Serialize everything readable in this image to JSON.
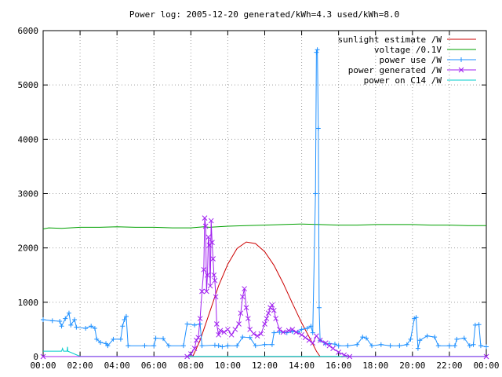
{
  "chart_data": {
    "type": "line",
    "title": "Power log: 2005-12-20 generated/kWh=4.3 used/kWh=8.0",
    "xlabel": "",
    "ylabel": "",
    "xlim": [
      0,
      24
    ],
    "ylim": [
      0,
      6000
    ],
    "x_ticks": [
      "00:00",
      "02:00",
      "04:00",
      "06:00",
      "08:00",
      "10:00",
      "12:00",
      "14:00",
      "16:00",
      "18:00",
      "20:00",
      "22:00",
      "00:00"
    ],
    "y_ticks": [
      "0",
      "1000",
      "2000",
      "3000",
      "4000",
      "5000",
      "6000"
    ],
    "grid": true,
    "legend_position": "top-right",
    "series": [
      {
        "name": "sunlight estimate /W",
        "color": "#cc0000",
        "marker": "none",
        "points": [
          [
            8.1,
            0
          ],
          [
            8.5,
            300
          ],
          [
            9.0,
            800
          ],
          [
            9.5,
            1300
          ],
          [
            10.0,
            1700
          ],
          [
            10.5,
            1990
          ],
          [
            11.0,
            2110
          ],
          [
            11.5,
            2080
          ],
          [
            12.0,
            1930
          ],
          [
            12.5,
            1680
          ],
          [
            13.0,
            1350
          ],
          [
            13.5,
            980
          ],
          [
            14.0,
            620
          ],
          [
            14.5,
            300
          ],
          [
            14.8,
            100
          ],
          [
            15.0,
            0
          ]
        ]
      },
      {
        "name": "voltage /0.1V",
        "color": "#00a000",
        "marker": "none",
        "points": [
          [
            0.0,
            2350
          ],
          [
            0.3,
            2370
          ],
          [
            1.0,
            2360
          ],
          [
            2.0,
            2380
          ],
          [
            3.0,
            2380
          ],
          [
            4.0,
            2390
          ],
          [
            5.0,
            2380
          ],
          [
            6.0,
            2380
          ],
          [
            7.0,
            2370
          ],
          [
            8.0,
            2370
          ],
          [
            8.7,
            2390
          ],
          [
            9.0,
            2380
          ],
          [
            10.0,
            2400
          ],
          [
            11.0,
            2410
          ],
          [
            12.0,
            2420
          ],
          [
            13.0,
            2430
          ],
          [
            14.0,
            2440
          ],
          [
            15.0,
            2430
          ],
          [
            16.0,
            2420
          ],
          [
            17.0,
            2420
          ],
          [
            18.0,
            2430
          ],
          [
            19.0,
            2430
          ],
          [
            20.0,
            2430
          ],
          [
            21.0,
            2420
          ],
          [
            22.0,
            2420
          ],
          [
            23.0,
            2410
          ],
          [
            24.0,
            2410
          ]
        ]
      },
      {
        "name": "power use /W",
        "color": "#1e90ff",
        "marker": "plus",
        "points": [
          [
            0.0,
            680
          ],
          [
            0.5,
            660
          ],
          [
            0.9,
            650
          ],
          [
            1.0,
            560
          ],
          [
            1.2,
            700
          ],
          [
            1.4,
            800
          ],
          [
            1.5,
            580
          ],
          [
            1.7,
            680
          ],
          [
            1.8,
            540
          ],
          [
            2.3,
            520
          ],
          [
            2.6,
            560
          ],
          [
            2.8,
            520
          ],
          [
            2.9,
            320
          ],
          [
            3.1,
            260
          ],
          [
            3.4,
            240
          ],
          [
            3.5,
            200
          ],
          [
            3.8,
            320
          ],
          [
            4.2,
            320
          ],
          [
            4.3,
            560
          ],
          [
            4.4,
            680
          ],
          [
            4.5,
            740
          ],
          [
            4.6,
            200
          ],
          [
            5.5,
            200
          ],
          [
            6.0,
            200
          ],
          [
            6.1,
            340
          ],
          [
            6.5,
            330
          ],
          [
            6.8,
            200
          ],
          [
            7.6,
            200
          ],
          [
            7.8,
            600
          ],
          [
            8.2,
            580
          ],
          [
            8.5,
            600
          ],
          [
            8.6,
            200
          ],
          [
            9.3,
            210
          ],
          [
            9.5,
            200
          ],
          [
            9.7,
            180
          ],
          [
            10.0,
            200
          ],
          [
            10.5,
            200
          ],
          [
            10.8,
            360
          ],
          [
            11.2,
            350
          ],
          [
            11.5,
            200
          ],
          [
            12.0,
            220
          ],
          [
            12.4,
            220
          ],
          [
            12.5,
            440
          ],
          [
            12.8,
            450
          ],
          [
            13.2,
            440
          ],
          [
            13.5,
            460
          ],
          [
            13.8,
            450
          ],
          [
            14.0,
            500
          ],
          [
            14.3,
            520
          ],
          [
            14.5,
            560
          ],
          [
            14.6,
            440
          ],
          [
            14.75,
            3000
          ],
          [
            14.8,
            5600
          ],
          [
            14.85,
            5650
          ],
          [
            14.9,
            4200
          ],
          [
            14.95,
            900
          ],
          [
            15.0,
            300
          ],
          [
            15.3,
            230
          ],
          [
            15.5,
            240
          ],
          [
            15.8,
            230
          ],
          [
            16.0,
            200
          ],
          [
            16.5,
            200
          ],
          [
            17.0,
            220
          ],
          [
            17.3,
            360
          ],
          [
            17.5,
            340
          ],
          [
            17.8,
            200
          ],
          [
            18.3,
            220
          ],
          [
            18.8,
            200
          ],
          [
            19.3,
            200
          ],
          [
            19.7,
            220
          ],
          [
            19.9,
            320
          ],
          [
            20.1,
            700
          ],
          [
            20.2,
            720
          ],
          [
            20.3,
            150
          ],
          [
            20.4,
            300
          ],
          [
            20.8,
            380
          ],
          [
            21.2,
            360
          ],
          [
            21.4,
            200
          ],
          [
            22.0,
            200
          ],
          [
            22.3,
            200
          ],
          [
            22.4,
            320
          ],
          [
            22.8,
            340
          ],
          [
            23.1,
            200
          ],
          [
            23.3,
            220
          ],
          [
            23.4,
            580
          ],
          [
            23.6,
            590
          ],
          [
            23.7,
            200
          ],
          [
            24.0,
            180
          ]
        ]
      },
      {
        "name": "power generated /W",
        "color": "#a020f0",
        "marker": "cross",
        "points": [
          [
            0.0,
            0
          ],
          [
            7.8,
            0
          ],
          [
            8.0,
            50
          ],
          [
            8.2,
            150
          ],
          [
            8.3,
            300
          ],
          [
            8.4,
            350
          ],
          [
            8.5,
            700
          ],
          [
            8.6,
            1200
          ],
          [
            8.7,
            1600
          ],
          [
            8.75,
            2550
          ],
          [
            8.8,
            2400
          ],
          [
            8.85,
            1200
          ],
          [
            8.9,
            1500
          ],
          [
            8.95,
            2200
          ],
          [
            9.0,
            2050
          ],
          [
            9.05,
            1300
          ],
          [
            9.1,
            2500
          ],
          [
            9.15,
            2100
          ],
          [
            9.2,
            1800
          ],
          [
            9.25,
            1500
          ],
          [
            9.3,
            1400
          ],
          [
            9.35,
            1100
          ],
          [
            9.4,
            600
          ],
          [
            9.5,
            400
          ],
          [
            9.6,
            480
          ],
          [
            9.8,
            450
          ],
          [
            10.0,
            500
          ],
          [
            10.2,
            400
          ],
          [
            10.4,
            500
          ],
          [
            10.6,
            600
          ],
          [
            10.7,
            800
          ],
          [
            10.8,
            1100
          ],
          [
            10.9,
            1250
          ],
          [
            11.0,
            900
          ],
          [
            11.1,
            700
          ],
          [
            11.2,
            500
          ],
          [
            11.4,
            420
          ],
          [
            11.6,
            380
          ],
          [
            11.8,
            420
          ],
          [
            12.0,
            600
          ],
          [
            12.1,
            700
          ],
          [
            12.2,
            800
          ],
          [
            12.3,
            900
          ],
          [
            12.4,
            950
          ],
          [
            12.5,
            850
          ],
          [
            12.6,
            700
          ],
          [
            12.8,
            500
          ],
          [
            13.0,
            450
          ],
          [
            13.3,
            480
          ],
          [
            13.5,
            500
          ],
          [
            13.7,
            450
          ],
          [
            14.0,
            400
          ],
          [
            14.2,
            350
          ],
          [
            14.4,
            300
          ],
          [
            14.6,
            250
          ],
          [
            14.8,
            380
          ],
          [
            15.0,
            300
          ],
          [
            15.3,
            250
          ],
          [
            15.5,
            200
          ],
          [
            15.7,
            150
          ],
          [
            16.0,
            80
          ],
          [
            16.3,
            30
          ],
          [
            16.6,
            0
          ],
          [
            24.0,
            0
          ]
        ]
      },
      {
        "name": "power on C14 /W",
        "color": "#00cccc",
        "marker": "none",
        "points": [
          [
            0.0,
            100
          ],
          [
            1.0,
            100
          ],
          [
            1.05,
            150
          ],
          [
            1.1,
            100
          ],
          [
            1.3,
            100
          ],
          [
            1.32,
            180
          ],
          [
            1.34,
            100
          ],
          [
            2.0,
            5
          ],
          [
            24.0,
            5
          ]
        ]
      }
    ]
  }
}
